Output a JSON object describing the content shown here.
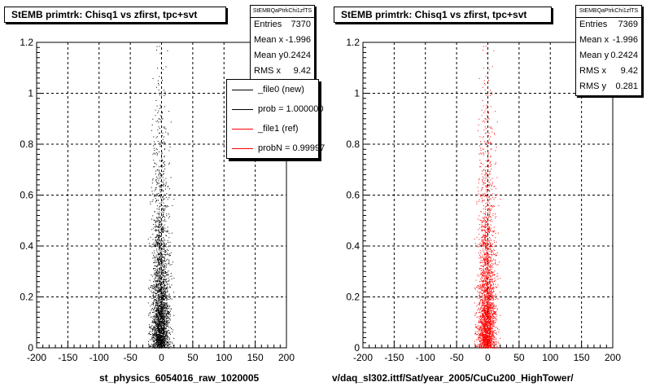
{
  "footer": {
    "left_label": "st_physics_6054016_raw_1020005",
    "right_label": "v/daq_sl302.ittf/Sat/year_2005/CuCu200_HighTower/"
  },
  "legend": [
    {
      "label": "_file0 (new)",
      "color": "#000000"
    },
    {
      "label": "prob = 1.000000",
      "color": "#000000"
    },
    {
      "label": "_file1 (ref)",
      "color": "#ff0000"
    },
    {
      "label": "probN = 0.99997",
      "color": "#ff0000"
    }
  ],
  "chart_data": [
    {
      "type": "scatter",
      "title": "StEMB primtrk: Chisq1 vs zfirst, tpc+svt",
      "xlabel": "",
      "ylabel": "",
      "xlim": [
        -200,
        200
      ],
      "ylim": [
        0,
        1.2
      ],
      "x_ticks": [
        "-200",
        "-150",
        "-100",
        "-50",
        "0",
        "50",
        "100",
        "150",
        "200"
      ],
      "y_ticks": [
        "0",
        "0.2",
        "0.4",
        "0.6",
        "0.8",
        "1",
        "1.2"
      ],
      "grid": true,
      "color": "#000000",
      "stats": {
        "name": "StEMBQaPtrkChi1zfTS",
        "rows": [
          {
            "label": "Entries",
            "value": "7370"
          },
          {
            "label": "Mean x",
            "value": "-1.996"
          },
          {
            "label": "Mean y",
            "value": "0.2424"
          },
          {
            "label": "RMS x",
            "value": "9.42"
          }
        ]
      },
      "distribution": {
        "x_mean": -1.996,
        "x_rms": 9.42,
        "y_mean": 0.2424,
        "entries": 7370
      }
    },
    {
      "type": "scatter",
      "title": "StEMB primtrk: Chisq1 vs zfirst, tpc+svt",
      "xlabel": "",
      "ylabel": "",
      "xlim": [
        -200,
        200
      ],
      "ylim": [
        0,
        1.2
      ],
      "x_ticks": [
        "-200",
        "-150",
        "-100",
        "-50",
        "0",
        "50",
        "100",
        "150",
        "200"
      ],
      "y_ticks": [
        "0",
        "0.2",
        "0.4",
        "0.6",
        "0.8",
        "1",
        "1.2"
      ],
      "grid": true,
      "color": "#ff0000",
      "stats": {
        "name": "StEMBQaPtrkChi1zfTS",
        "rows": [
          {
            "label": "Entries",
            "value": "7369"
          },
          {
            "label": "Mean x",
            "value": "-1.996"
          },
          {
            "label": "Mean y",
            "value": "0.2424"
          },
          {
            "label": "RMS x",
            "value": "9.42"
          },
          {
            "label": "RMS y",
            "value": "0.281"
          }
        ]
      },
      "distribution": {
        "x_mean": -1.996,
        "x_rms": 9.42,
        "y_mean": 0.2424,
        "y_rms": 0.281,
        "entries": 7369
      }
    }
  ]
}
